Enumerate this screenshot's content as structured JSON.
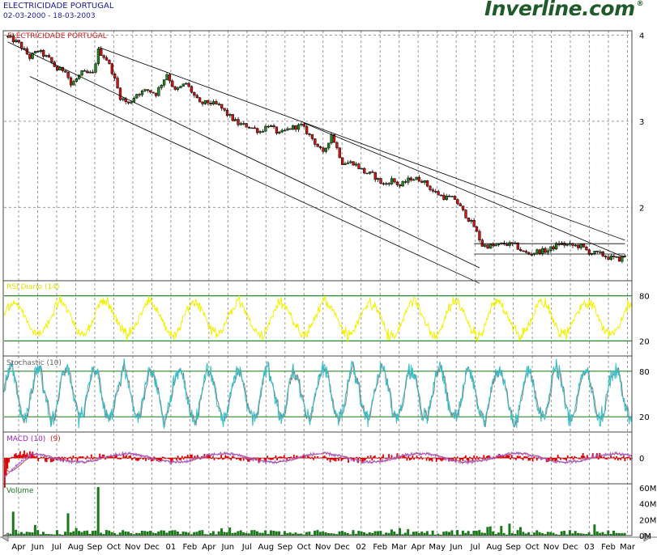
{
  "header": {
    "title": "ELECTRICIDADE PORTUGAL",
    "date_range": "02-03-2000 - 18-03-2003",
    "brand": "Inverline.com",
    "brand_mark": "®"
  },
  "colors": {
    "up_candle": "#1e8a1e",
    "down_candle": "#d01515",
    "rsi_line": "#f2f200",
    "stoch_k": "#33c0c8",
    "stoch_d": "#808080",
    "macd_line": "#a060d0",
    "macd_signal": "#cc3333",
    "macd_hist": "#e00000",
    "volume": "#1a7a1a",
    "grid": "#999999",
    "level_line": "#2a8a2a"
  },
  "chart_data": [
    {
      "type": "candlestick",
      "panel": "price",
      "title": "ELECTRICIDADE PORTUGAL",
      "ylim": [
        1.15,
        4.05
      ],
      "yticks": [
        4,
        3,
        2
      ],
      "grid": true,
      "series": [
        {
          "values": [
            [
              0,
              3.98
            ],
            [
              4,
              3.9
            ],
            [
              8,
              3.74
            ],
            [
              11,
              3.82
            ],
            [
              15,
              3.72
            ],
            [
              18,
              3.6
            ],
            [
              21,
              3.6
            ],
            [
              23,
              3.42
            ],
            [
              27,
              3.56
            ],
            [
              31,
              3.55
            ],
            [
              33,
              3.82
            ],
            [
              36,
              3.72
            ],
            [
              38,
              3.58
            ],
            [
              41,
              3.28
            ],
            [
              44,
              3.2
            ],
            [
              47,
              3.32
            ],
            [
              51,
              3.36
            ],
            [
              54,
              3.32
            ],
            [
              58,
              3.55
            ],
            [
              61,
              3.35
            ],
            [
              65,
              3.44
            ],
            [
              70,
              3.2
            ],
            [
              73,
              3.22
            ],
            [
              77,
              3.18
            ],
            [
              80,
              3.08
            ],
            [
              84,
              2.97
            ],
            [
              88,
              2.94
            ],
            [
              92,
              2.88
            ],
            [
              95,
              2.96
            ],
            [
              99,
              2.85
            ],
            [
              103,
              2.92
            ],
            [
              107,
              2.95
            ],
            [
              111,
              2.8
            ],
            [
              115,
              2.62
            ],
            [
              118,
              2.85
            ],
            [
              122,
              2.52
            ],
            [
              126,
              2.52
            ],
            [
              130,
              2.41
            ],
            [
              133,
              2.38
            ],
            [
              137,
              2.26
            ],
            [
              140,
              2.32
            ],
            [
              143,
              2.25
            ],
            [
              147,
              2.34
            ],
            [
              151,
              2.32
            ],
            [
              155,
              2.19
            ],
            [
              159,
              2.12
            ],
            [
              163,
              2.1
            ],
            [
              166,
              1.95
            ],
            [
              170,
              1.78
            ],
            [
              173,
              1.56
            ],
            [
              177,
              1.55
            ],
            [
              181,
              1.58
            ],
            [
              185,
              1.56
            ],
            [
              188,
              1.48
            ],
            [
              190,
              1.46
            ],
            [
              193,
              1.49
            ],
            [
              197,
              1.5
            ],
            [
              201,
              1.58
            ],
            [
              205,
              1.56
            ],
            [
              209,
              1.55
            ],
            [
              212,
              1.48
            ],
            [
              216,
              1.46
            ],
            [
              219,
              1.42
            ],
            [
              223,
              1.4
            ],
            [
              225,
              1.44
            ]
          ]
        }
      ]
    },
    {
      "type": "line",
      "panel": "rsi",
      "title": "RSI Diario (14)",
      "ylim": [
        0,
        100
      ],
      "yticks": [
        80,
        20
      ],
      "levels": [
        80,
        20
      ]
    },
    {
      "type": "line",
      "panel": "stochastic",
      "title": "Stochastic (10)",
      "ylim": [
        0,
        100
      ],
      "yticks": [
        80,
        20
      ],
      "levels": [
        80,
        20
      ]
    },
    {
      "type": "line",
      "panel": "macd",
      "title": "MACD (10)",
      "signal_label": "(9)",
      "ylim": [
        -0.3,
        0.3
      ],
      "yticks": [
        0
      ]
    },
    {
      "type": "bar",
      "panel": "volume",
      "title": "Volume",
      "ylim": [
        0,
        65
      ],
      "yticks": [
        60,
        40,
        20,
        0
      ],
      "ytick_labels": [
        "60M",
        "40M",
        "20M",
        "0M"
      ],
      "spikes": [
        [
          33,
          61
        ],
        [
          2,
          30
        ],
        [
          22,
          28
        ],
        [
          183,
          15
        ],
        [
          214,
          14
        ]
      ]
    }
  ],
  "x_axis": {
    "ticks": [
      "Apr",
      "Jun",
      "Jul",
      "Aug",
      "Sep",
      "Oct",
      "Nov",
      "Dec",
      "01",
      "Feb",
      "Apr",
      "Jun",
      "Jul",
      "Aug",
      "Sep",
      "Oct",
      "Nov",
      "Dec",
      "02",
      "Feb",
      "Mar",
      "Apr",
      "May",
      "Jun",
      "Jul",
      "Aug",
      "Sep",
      "Oct",
      "Nov",
      "Dec",
      "03",
      "Feb",
      "Mar"
    ]
  }
}
